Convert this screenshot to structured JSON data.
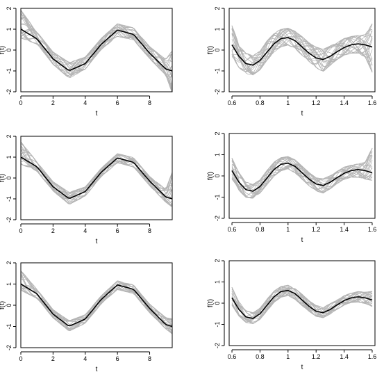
{
  "colors": {
    "band": "#b5b5b5",
    "mean": "#000000",
    "axis": "#000000"
  },
  "chart_data": [
    {
      "type": "line",
      "title": "",
      "xlabel": "t",
      "ylabel": "f(t)",
      "xlim": [
        0,
        9.4
      ],
      "ylim": [
        -2,
        2
      ],
      "xticks": [
        0,
        2,
        4,
        6,
        8
      ],
      "yticks": [
        -2,
        -1,
        0,
        1,
        2
      ],
      "mean": {
        "x": [
          0,
          1,
          2,
          3,
          4,
          5,
          6,
          7,
          8,
          9,
          9.4
        ],
        "y": [
          1.0,
          0.54,
          -0.42,
          -0.99,
          -0.65,
          0.28,
          0.96,
          0.75,
          -0.15,
          -0.91,
          -1.0
        ]
      },
      "band": {
        "x": [
          0,
          1,
          2,
          3,
          4,
          5,
          6,
          7,
          8,
          9,
          9.4
        ],
        "lower": [
          0.5,
          0.25,
          -0.72,
          -1.4,
          -0.95,
          0.0,
          0.62,
          0.45,
          -0.45,
          -1.25,
          -2.2
        ],
        "upper": [
          2.0,
          0.9,
          -0.05,
          -0.55,
          -0.3,
          0.6,
          1.3,
          1.1,
          0.2,
          -0.4,
          0.1
        ]
      }
    },
    {
      "type": "line",
      "title": "",
      "xlabel": "t",
      "ylabel": "f(t)",
      "xlim": [
        0.58,
        1.62
      ],
      "ylim": [
        -2,
        2
      ],
      "xticks": [
        0.6,
        0.8,
        1.0,
        1.2,
        1.4,
        1.6
      ],
      "yticks": [
        -2,
        -1,
        0,
        1,
        2
      ],
      "mean": {
        "x": [
          0.6,
          0.65,
          0.7,
          0.75,
          0.8,
          0.85,
          0.9,
          0.95,
          1.0,
          1.05,
          1.1,
          1.15,
          1.2,
          1.25,
          1.3,
          1.35,
          1.4,
          1.45,
          1.5,
          1.55,
          1.6
        ],
        "y": [
          0.25,
          -0.3,
          -0.65,
          -0.72,
          -0.5,
          -0.1,
          0.3,
          0.55,
          0.6,
          0.45,
          0.15,
          -0.15,
          -0.38,
          -0.45,
          -0.3,
          -0.08,
          0.12,
          0.25,
          0.3,
          0.25,
          0.15
        ]
      },
      "band": {
        "x": [
          0.6,
          0.65,
          0.7,
          0.75,
          0.8,
          0.85,
          0.9,
          0.95,
          1.0,
          1.05,
          1.1,
          1.15,
          1.2,
          1.25,
          1.3,
          1.35,
          1.4,
          1.45,
          1.5,
          1.55,
          1.6
        ],
        "lower": [
          -0.4,
          -0.9,
          -1.2,
          -1.25,
          -1.0,
          -0.55,
          -0.15,
          0.1,
          0.2,
          0.0,
          -0.3,
          -0.6,
          -0.9,
          -1.1,
          -0.8,
          -0.5,
          -0.3,
          -0.2,
          -0.2,
          -0.4,
          -1.2
        ],
        "upper": [
          1.3,
          0.3,
          -0.1,
          -0.2,
          0.0,
          0.5,
          0.85,
          1.05,
          1.1,
          0.95,
          0.7,
          0.4,
          0.2,
          0.1,
          0.25,
          0.4,
          0.6,
          0.7,
          0.75,
          0.8,
          1.4
        ]
      }
    },
    {
      "type": "line",
      "title": "",
      "xlabel": "t",
      "ylabel": "f(t)",
      "xlim": [
        0,
        9.4
      ],
      "ylim": [
        -2,
        2
      ],
      "xticks": [
        0,
        2,
        4,
        6,
        8
      ],
      "yticks": [
        -2,
        -1,
        0,
        1,
        2
      ],
      "mean": {
        "x": [
          0,
          1,
          2,
          3,
          4,
          5,
          6,
          7,
          8,
          9,
          9.4
        ],
        "y": [
          1.0,
          0.54,
          -0.42,
          -0.99,
          -0.65,
          0.28,
          0.96,
          0.75,
          -0.15,
          -0.91,
          -1.0
        ]
      },
      "band": {
        "x": [
          0,
          1,
          2,
          3,
          4,
          5,
          6,
          7,
          8,
          9,
          9.4
        ],
        "lower": [
          0.6,
          0.3,
          -0.65,
          -1.3,
          -0.9,
          0.05,
          0.7,
          0.5,
          -0.4,
          -1.2,
          -1.5
        ],
        "upper": [
          1.8,
          0.8,
          -0.15,
          -0.65,
          -0.4,
          0.5,
          1.2,
          1.0,
          0.1,
          -0.5,
          0.4
        ]
      }
    },
    {
      "type": "line",
      "title": "",
      "xlabel": "t",
      "ylabel": "f(t)",
      "xlim": [
        0.58,
        1.62
      ],
      "ylim": [
        -2,
        2
      ],
      "xticks": [
        0.6,
        0.8,
        1.0,
        1.2,
        1.4,
        1.6
      ],
      "yticks": [
        -2,
        -1,
        0,
        1,
        2
      ],
      "mean": {
        "x": [
          0.6,
          0.65,
          0.7,
          0.75,
          0.8,
          0.85,
          0.9,
          0.95,
          1.0,
          1.05,
          1.1,
          1.15,
          1.2,
          1.25,
          1.3,
          1.35,
          1.4,
          1.45,
          1.5,
          1.55,
          1.6
        ],
        "y": [
          0.25,
          -0.3,
          -0.65,
          -0.72,
          -0.5,
          -0.1,
          0.3,
          0.55,
          0.6,
          0.45,
          0.15,
          -0.15,
          -0.38,
          -0.45,
          -0.3,
          -0.08,
          0.12,
          0.25,
          0.3,
          0.25,
          0.15
        ]
      },
      "band": {
        "x": [
          0.6,
          0.65,
          0.7,
          0.75,
          0.8,
          0.85,
          0.9,
          0.95,
          1.0,
          1.05,
          1.1,
          1.15,
          1.2,
          1.25,
          1.3,
          1.35,
          1.4,
          1.45,
          1.5,
          1.55,
          1.6
        ],
        "lower": [
          -0.2,
          -0.75,
          -1.05,
          -1.1,
          -0.85,
          -0.45,
          -0.05,
          0.2,
          0.3,
          0.1,
          -0.2,
          -0.5,
          -0.75,
          -0.85,
          -0.65,
          -0.4,
          -0.2,
          -0.1,
          -0.1,
          -0.2,
          -0.3
        ],
        "upper": [
          0.9,
          0.2,
          -0.25,
          -0.35,
          -0.15,
          0.3,
          0.7,
          0.9,
          0.95,
          0.8,
          0.5,
          0.2,
          -0.05,
          -0.1,
          0.05,
          0.25,
          0.45,
          0.55,
          0.6,
          0.7,
          1.4
        ]
      }
    },
    {
      "type": "line",
      "title": "",
      "xlabel": "t",
      "ylabel": "f(t)",
      "xlim": [
        0,
        9.4
      ],
      "ylim": [
        -2,
        2
      ],
      "xticks": [
        0,
        2,
        4,
        6,
        8
      ],
      "yticks": [
        -2,
        -1,
        0,
        1,
        2
      ],
      "mean": {
        "x": [
          0,
          1,
          2,
          3,
          4,
          5,
          6,
          7,
          8,
          9,
          9.4
        ],
        "y": [
          1.0,
          0.54,
          -0.42,
          -0.99,
          -0.65,
          0.28,
          0.96,
          0.75,
          -0.15,
          -0.91,
          -1.0
        ]
      },
      "band": {
        "x": [
          0,
          1,
          2,
          3,
          4,
          5,
          6,
          7,
          8,
          9,
          9.4
        ],
        "lower": [
          0.65,
          0.3,
          -0.62,
          -1.25,
          -0.88,
          0.05,
          0.72,
          0.52,
          -0.38,
          -1.15,
          -1.4
        ],
        "upper": [
          1.7,
          0.78,
          -0.18,
          -0.7,
          -0.42,
          0.48,
          1.18,
          0.98,
          0.08,
          -0.55,
          -0.6
        ]
      }
    },
    {
      "type": "line",
      "title": "",
      "xlabel": "t",
      "ylabel": "f(t)",
      "xlim": [
        0.58,
        1.62
      ],
      "ylim": [
        -2,
        2
      ],
      "xticks": [
        0.6,
        0.8,
        1.0,
        1.2,
        1.4,
        1.6
      ],
      "yticks": [
        -2,
        -1,
        0,
        1,
        2
      ],
      "mean": {
        "x": [
          0.6,
          0.65,
          0.7,
          0.75,
          0.8,
          0.85,
          0.9,
          0.95,
          1.0,
          1.05,
          1.1,
          1.15,
          1.2,
          1.25,
          1.3,
          1.35,
          1.4,
          1.45,
          1.5,
          1.55,
          1.6
        ],
        "y": [
          0.25,
          -0.3,
          -0.65,
          -0.72,
          -0.5,
          -0.1,
          0.3,
          0.55,
          0.6,
          0.45,
          0.15,
          -0.15,
          -0.38,
          -0.45,
          -0.3,
          -0.08,
          0.12,
          0.25,
          0.3,
          0.25,
          0.15
        ]
      },
      "band": {
        "x": [
          0.6,
          0.65,
          0.7,
          0.75,
          0.8,
          0.85,
          0.9,
          0.95,
          1.0,
          1.05,
          1.1,
          1.15,
          1.2,
          1.25,
          1.3,
          1.35,
          1.4,
          1.45,
          1.5,
          1.55,
          1.6
        ],
        "lower": [
          -0.15,
          -0.65,
          -0.95,
          -1.0,
          -0.8,
          -0.4,
          0.0,
          0.25,
          0.32,
          0.15,
          -0.15,
          -0.42,
          -0.65,
          -0.72,
          -0.55,
          -0.32,
          -0.12,
          0.0,
          0.02,
          -0.05,
          -0.2
        ],
        "upper": [
          0.8,
          0.1,
          -0.32,
          -0.42,
          -0.2,
          0.22,
          0.6,
          0.82,
          0.88,
          0.72,
          0.45,
          0.15,
          -0.08,
          -0.15,
          0.0,
          0.18,
          0.38,
          0.5,
          0.58,
          0.55,
          0.6
        ]
      }
    }
  ]
}
